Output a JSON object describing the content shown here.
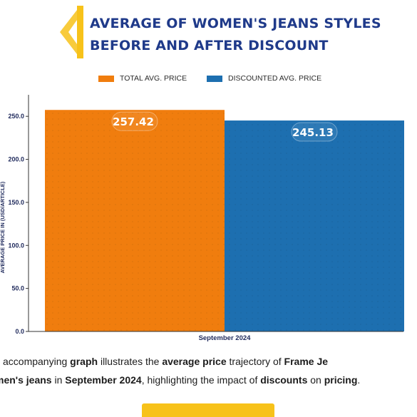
{
  "header": {
    "title_line1": "AVERAGE OF WOMEN'S JEANS STYLES",
    "title_line2": "BEFORE AND AFTER DISCOUNT"
  },
  "colors": {
    "accent": "#f7c21a",
    "title": "#1f3a8a",
    "total": "#f07d0e",
    "discounted": "#1d6fb0"
  },
  "chart_data": {
    "type": "bar",
    "categories": [
      "September 2024"
    ],
    "series": [
      {
        "name": "TOTAL AVG. PRICE",
        "values": [
          257.42
        ],
        "color": "#f07d0e"
      },
      {
        "name": "DISCOUNTED AVG. PRICE",
        "values": [
          245.13
        ],
        "color": "#1d6fb0"
      }
    ],
    "data_labels": [
      "257.42",
      "245.13"
    ],
    "ylabel": "AVERAGE PRICE IN (USD/ARTICLE)",
    "xlabel": "",
    "yticks": [
      "0.0",
      "50.0",
      "100.0",
      "150.0",
      "200.0",
      "250.0"
    ],
    "ylim": [
      0,
      275
    ],
    "legend_position": "top",
    "grid": false
  },
  "paragraph": {
    "line1": [
      {
        "t": "accompanying ",
        "b": false
      },
      {
        "t": "graph",
        "b": true
      },
      {
        "t": " illustrates the ",
        "b": false
      },
      {
        "t": "average price",
        "b": true
      },
      {
        "t": " trajectory of ",
        "b": false
      },
      {
        "t": "Frame Je",
        "b": true
      }
    ],
    "line2": [
      {
        "t": "men's jeans",
        "b": true
      },
      {
        "t": " in ",
        "b": false
      },
      {
        "t": "September 2024",
        "b": true
      },
      {
        "t": ", highlighting the impact of ",
        "b": false
      },
      {
        "t": "discounts",
        "b": true
      },
      {
        "t": " on ",
        "b": false
      },
      {
        "t": "pricing",
        "b": true
      },
      {
        "t": ".",
        "b": false
      }
    ]
  }
}
